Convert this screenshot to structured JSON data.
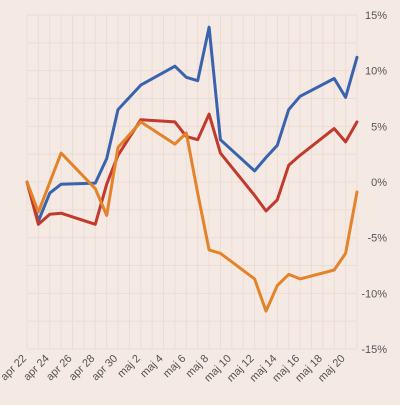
{
  "colors": {
    "background": "#f5e9e3",
    "grid": "#ecdcd6",
    "axis_text": "#555555"
  },
  "chart_data": {
    "type": "line",
    "title": "",
    "xlabel": "",
    "ylabel": "",
    "y_axis_position": "right",
    "grid": true,
    "legend": "none",
    "ylim": [
      -15,
      15
    ],
    "yticks": [
      15,
      10,
      5,
      0,
      -5,
      -10,
      -15
    ],
    "ytick_labels": [
      "15%",
      "10%",
      "5%",
      "0%",
      "-5%",
      "-10%",
      "-15%"
    ],
    "x": [
      "apr 22",
      "apr 23",
      "apr 24",
      "apr 25",
      "apr 26",
      "apr 27",
      "apr 28",
      "apr 29",
      "apr 30",
      "maj 1",
      "maj 2",
      "maj 3",
      "maj 4",
      "maj 5",
      "maj 6",
      "maj 7",
      "maj 8",
      "maj 9",
      "maj 10",
      "maj 11",
      "maj 12",
      "maj 13",
      "maj 14",
      "maj 15",
      "maj 16",
      "maj 17",
      "maj 18",
      "maj 19",
      "maj 20",
      "maj 21"
    ],
    "xtick_labels": [
      "apr 22",
      "apr 24",
      "apr 26",
      "apr 28",
      "apr 30",
      "maj 2",
      "maj 4",
      "maj 6",
      "maj 8",
      "maj 10",
      "maj 12",
      "maj 14",
      "maj 16",
      "maj 18",
      "maj 20"
    ],
    "series": [
      {
        "color": "#3a63ad",
        "x": [
          "apr 22",
          "apr 23",
          "apr 24",
          "apr 25",
          "apr 28",
          "apr 29",
          "apr 30",
          "maj 2",
          "maj 5",
          "maj 6",
          "maj 7",
          "maj 8",
          "maj 9",
          "maj 12",
          "maj 13",
          "maj 14",
          "maj 15",
          "maj 16",
          "maj 19",
          "maj 20",
          "maj 21"
        ],
        "values": [
          0.0,
          -3.5,
          -1.0,
          -0.2,
          -0.1,
          2.1,
          6.5,
          8.7,
          10.4,
          9.4,
          9.1,
          13.9,
          3.8,
          1.0,
          2.2,
          3.3,
          6.5,
          7.7,
          9.3,
          7.6,
          11.2
        ]
      },
      {
        "color": "#c23a2e",
        "x": [
          "apr 22",
          "apr 23",
          "apr 24",
          "apr 25",
          "apr 28",
          "apr 29",
          "apr 30",
          "maj 2",
          "maj 5",
          "maj 6",
          "maj 7",
          "maj 8",
          "maj 9",
          "maj 12",
          "maj 13",
          "maj 14",
          "maj 15",
          "maj 16",
          "maj 19",
          "maj 20",
          "maj 21"
        ],
        "values": [
          0.0,
          -3.8,
          -2.9,
          -2.8,
          -3.8,
          -0.2,
          2.4,
          5.6,
          5.4,
          4.1,
          3.8,
          6.1,
          2.6,
          -1.2,
          -2.6,
          -1.6,
          1.5,
          2.4,
          4.8,
          3.6,
          5.4
        ]
      },
      {
        "color": "#e3832a",
        "x": [
          "apr 22",
          "apr 23",
          "apr 25",
          "apr 28",
          "apr 29",
          "apr 30",
          "maj 2",
          "maj 5",
          "maj 6",
          "maj 7",
          "maj 8",
          "maj 9",
          "maj 12",
          "maj 13",
          "maj 14",
          "maj 15",
          "maj 16",
          "maj 19",
          "maj 20",
          "maj 21"
        ],
        "values": [
          0.0,
          -2.7,
          2.6,
          -0.6,
          -3.0,
          3.1,
          5.4,
          3.4,
          4.4,
          -1.0,
          -6.1,
          -6.4,
          -8.7,
          -11.6,
          -9.3,
          -8.3,
          -8.7,
          -7.9,
          -6.4,
          -0.9
        ]
      }
    ]
  }
}
